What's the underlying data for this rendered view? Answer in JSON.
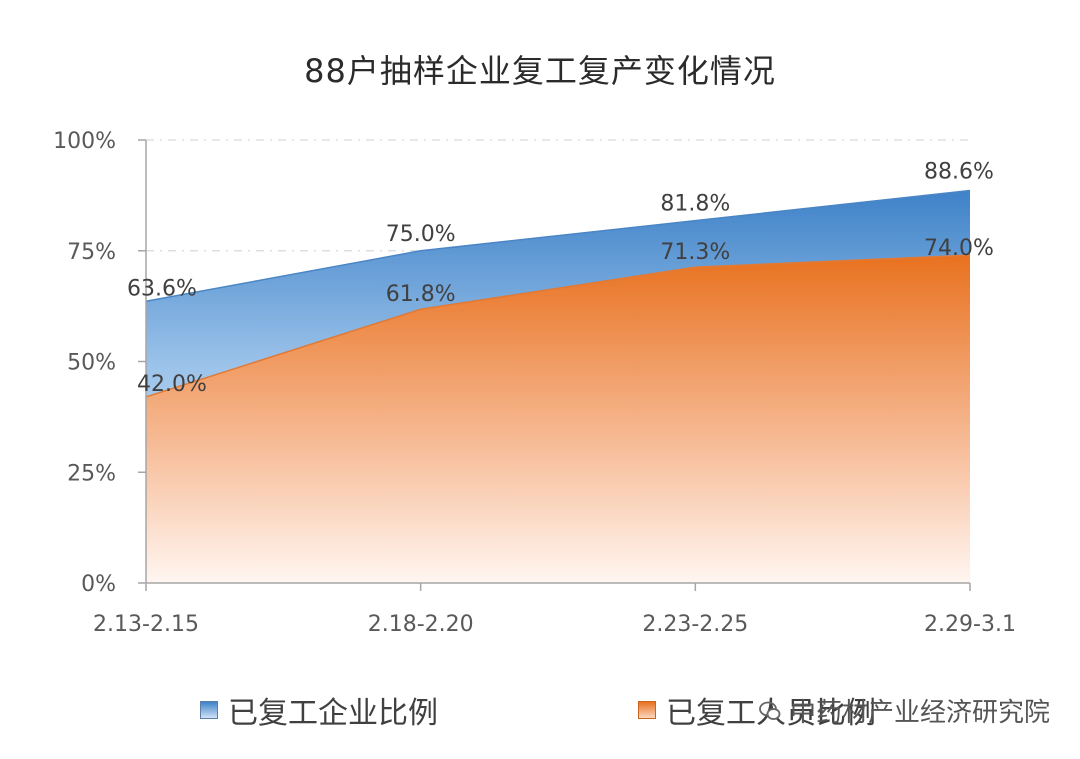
{
  "chart_data": {
    "type": "area",
    "title": "88户抽样企业复工复产变化情况",
    "categories": [
      "2.13-2.15",
      "2.18-2.20",
      "2.23-2.25",
      "2.29-3.1"
    ],
    "series": [
      {
        "name": "已复工企业比例",
        "values": [
          63.6,
          75.0,
          81.8,
          88.6
        ],
        "labels": [
          "63.6%",
          "75.0%",
          "81.8%",
          "88.6%"
        ],
        "color": "#5b9bd5"
      },
      {
        "name": "已复工人员比例",
        "values": [
          42.0,
          61.8,
          71.3,
          74.0
        ],
        "labels": [
          "42.0%",
          "61.8%",
          "71.3%",
          "74.0%"
        ],
        "color": "#ed7d31"
      }
    ],
    "y_ticks": [
      "0%",
      "25%",
      "50%",
      "75%",
      "100%"
    ],
    "ylim": [
      0,
      100
    ],
    "legend_position": "bottom",
    "grid": "dashed horizontal"
  },
  "watermark": {
    "text": "中药材产业经济研究院"
  }
}
